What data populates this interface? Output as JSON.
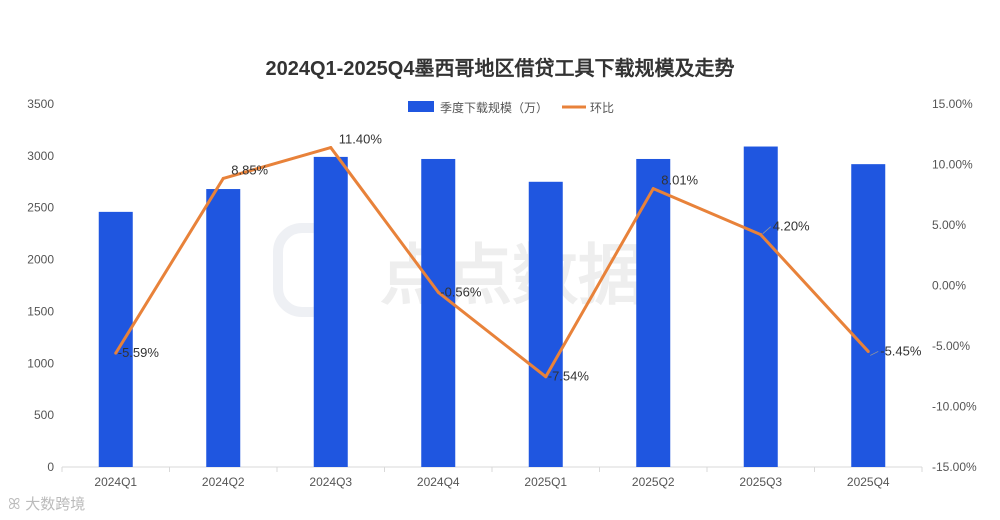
{
  "chart_data": {
    "type": "bar+line",
    "title": "2024Q1-2025Q4墨西哥地区借贷工具下载规模及走势",
    "categories": [
      "2024Q1",
      "2024Q2",
      "2024Q3",
      "2024Q4",
      "2025Q1",
      "2025Q2",
      "2025Q3",
      "2025Q4"
    ],
    "series": [
      {
        "name": "季度下载规模（万）",
        "type": "bar",
        "axis": "left",
        "color": "#1f56e0",
        "values": [
          2460,
          2680,
          2990,
          2970,
          2750,
          2970,
          3090,
          2920
        ]
      },
      {
        "name": "环比",
        "type": "line",
        "axis": "right",
        "color": "#e8823a",
        "values": [
          -5.59,
          8.85,
          11.4,
          -0.56,
          -7.54,
          8.01,
          4.2,
          -5.45
        ],
        "labels": [
          "-5.59%",
          "8.85%",
          "11.40%",
          "-0.56%",
          "-7.54%",
          "8.01%",
          "4.20%",
          "-5.45%"
        ]
      }
    ],
    "y_left": {
      "min": 0,
      "max": 3500,
      "ticks": [
        "0",
        "500",
        "1000",
        "1500",
        "2000",
        "2500",
        "3000",
        "3500"
      ]
    },
    "y_right": {
      "min": -15,
      "max": 15,
      "ticks": [
        "-15.00%",
        "-10.00%",
        "-5.00%",
        "0.00%",
        "5.00%",
        "10.00%",
        "15.00%"
      ]
    },
    "grid": false,
    "legend": "top-center"
  },
  "watermark": {
    "text": "点点数据",
    "color": "#f0f0f0"
  },
  "footer": {
    "logo_text": "大数跨境"
  }
}
